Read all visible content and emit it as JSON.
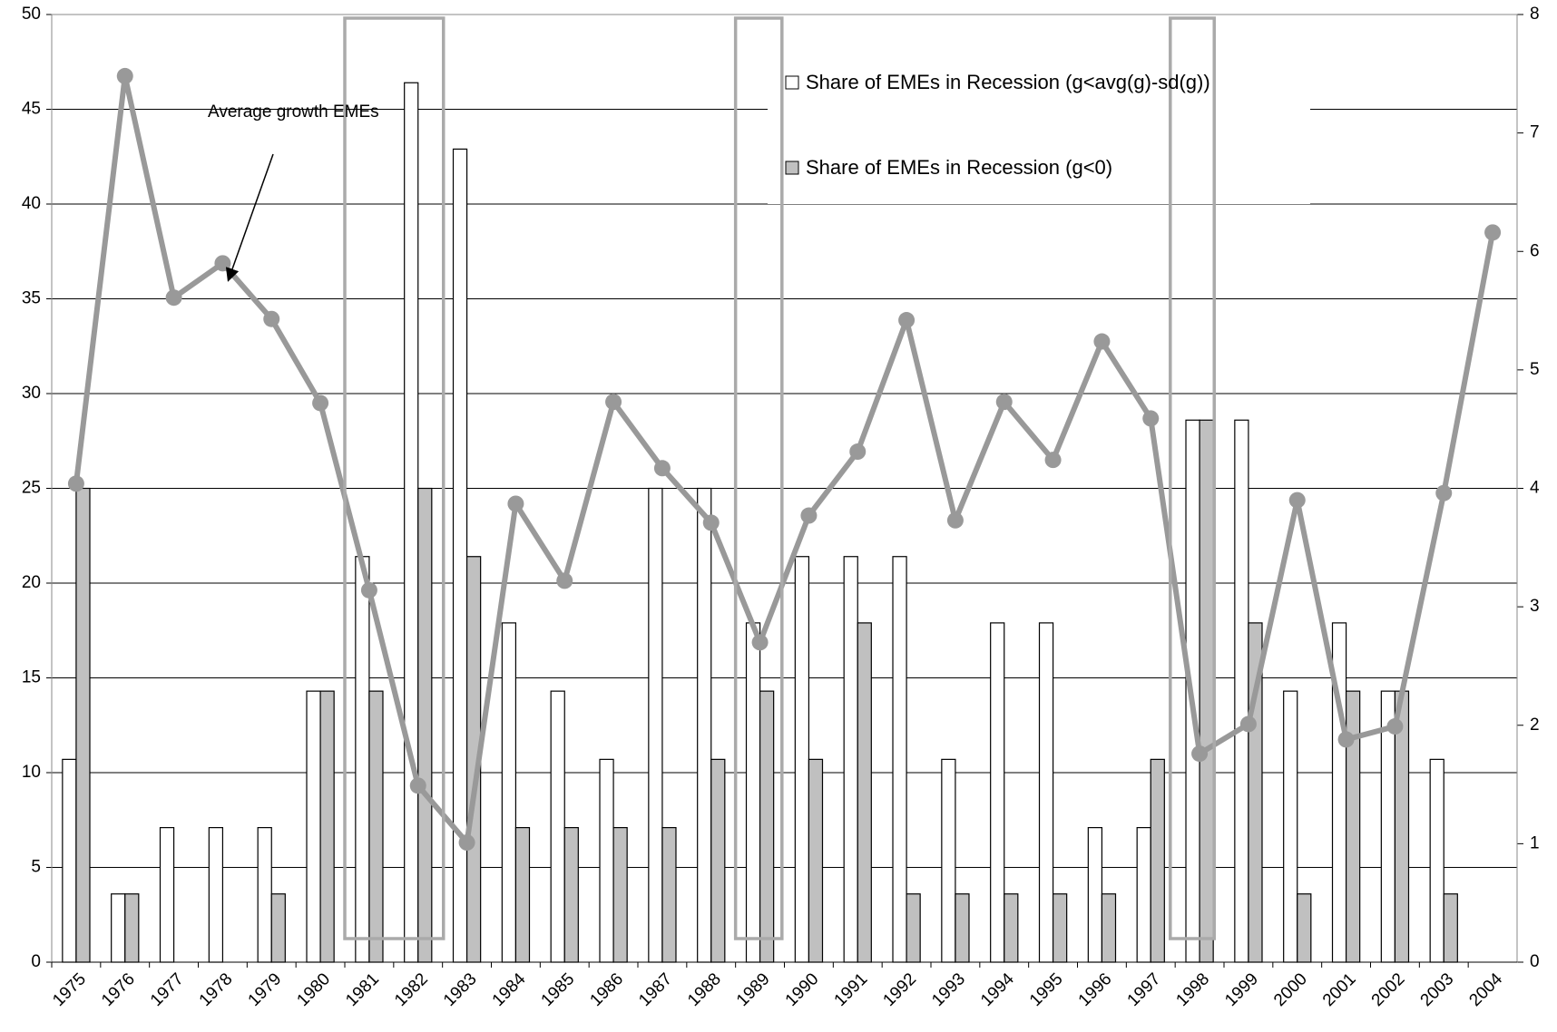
{
  "chart_data": {
    "type": "bar-line",
    "annotation": "Average growth EMEs",
    "categories": [
      "1975",
      "1976",
      "1977",
      "1978",
      "1979",
      "1980",
      "1981",
      "1982",
      "1983",
      "1984",
      "1985",
      "1986",
      "1987",
      "1988",
      "1989",
      "1990",
      "1991",
      "1992",
      "1993",
      "1994",
      "1995",
      "1996",
      "1997",
      "1998",
      "1999",
      "2000",
      "2001",
      "2002",
      "2003",
      "2004"
    ],
    "series": [
      {
        "name": "Share of EMEs in Recession (g<avg(g)-sd(g))",
        "color": "#ffffff",
        "values": [
          10.7,
          3.6,
          7.1,
          7.1,
          7.1,
          14.3,
          21.4,
          46.4,
          42.9,
          17.9,
          14.3,
          10.7,
          25,
          25,
          17.9,
          21.4,
          21.4,
          21.4,
          10.7,
          17.9,
          17.9,
          7.1,
          7.1,
          28.6,
          28.6,
          14.3,
          17.9,
          14.3,
          10.7,
          0
        ]
      },
      {
        "name": "Share of EMEs in Recession (g<0)",
        "color": "#c0c0c0",
        "values": [
          25,
          3.6,
          0,
          0,
          3.6,
          14.3,
          14.3,
          25,
          21.4,
          7.1,
          7.1,
          7.1,
          7.1,
          10.7,
          14.3,
          10.7,
          17.9,
          3.6,
          3.6,
          3.6,
          3.6,
          3.6,
          10.7,
          28.6,
          17.9,
          3.6,
          14.3,
          14.3,
          3.6,
          0
        ]
      },
      {
        "type": "line",
        "axis": "y2",
        "color": "#999999",
        "values": [
          4.04,
          7.48,
          5.61,
          5.9,
          5.43,
          4.72,
          3.14,
          1.49,
          1.01,
          3.87,
          3.22,
          4.73,
          4.17,
          3.71,
          2.7,
          3.77,
          4.31,
          5.42,
          3.73,
          4.73,
          4.24,
          5.24,
          4.59,
          1.76,
          2.01,
          3.9,
          1.88,
          1.99,
          3.96,
          6.16
        ]
      }
    ],
    "ylim": [
      0,
      50
    ],
    "yticks": [
      0,
      5,
      10,
      15,
      20,
      25,
      30,
      35,
      40,
      45,
      50
    ],
    "y2lim": [
      0,
      8
    ],
    "y2ticks": [
      0,
      1,
      2,
      3,
      4,
      5,
      6,
      7,
      8
    ],
    "grid": true,
    "legend": "top-right"
  }
}
